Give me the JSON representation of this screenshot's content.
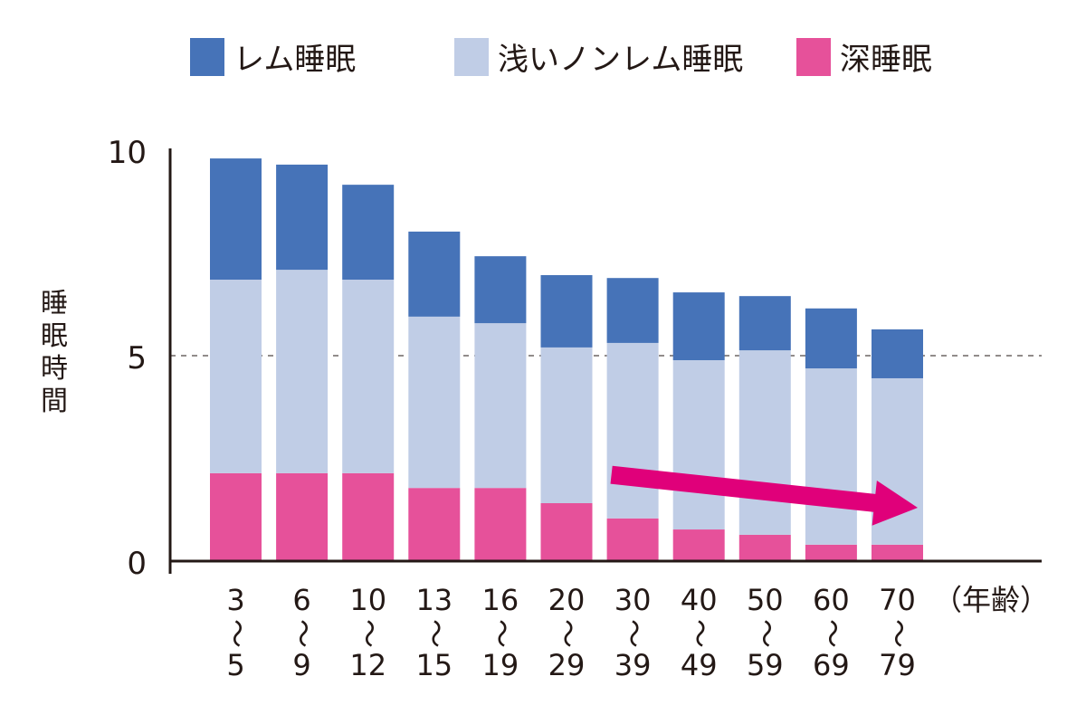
{
  "chart_data": {
    "type": "bar",
    "stacked": true,
    "title": "",
    "xlabel": "（年齢）",
    "ylabel": "睡眠時間",
    "ylim": [
      0,
      10
    ],
    "yticks": [
      0,
      5,
      10
    ],
    "grid": "dashed line at 5",
    "legend_position": "top",
    "categories": [
      {
        "from": "3",
        "to": "5"
      },
      {
        "from": "6",
        "to": "9"
      },
      {
        "from": "10",
        "to": "12"
      },
      {
        "from": "13",
        "to": "15"
      },
      {
        "from": "16",
        "to": "19"
      },
      {
        "from": "20",
        "to": "29"
      },
      {
        "from": "30",
        "to": "39"
      },
      {
        "from": "40",
        "to": "49"
      },
      {
        "from": "50",
        "to": "59"
      },
      {
        "from": "60",
        "to": "69"
      },
      {
        "from": "70",
        "to": "79"
      }
    ],
    "range_separator": "～",
    "series": [
      {
        "name": "深睡眠",
        "color": "#e6519a",
        "values": [
          2.14,
          2.14,
          2.14,
          1.78,
          1.78,
          1.41,
          1.04,
          0.77,
          0.64,
          0.4,
          0.4
        ]
      },
      {
        "name": "浅いノンレム睡眠",
        "color": "#c0cde6",
        "values": [
          4.71,
          4.95,
          4.71,
          4.17,
          4.01,
          3.79,
          4.27,
          4.12,
          4.49,
          4.29,
          4.05
        ]
      },
      {
        "name": "レム睡眠",
        "color": "#4673b8",
        "values": [
          2.95,
          2.56,
          2.31,
          2.07,
          1.63,
          1.76,
          1.58,
          1.65,
          1.32,
          1.46,
          1.19
        ]
      }
    ],
    "legend_order": [
      "レム睡眠",
      "浅いノンレム睡眠",
      "深睡眠"
    ],
    "annotations": [
      {
        "type": "arrow",
        "meaning": "deep sleep decreasing with age",
        "color": "#e0007a",
        "from_category": "30～39",
        "to_category": "70～79",
        "from_value": 2.1,
        "to_value": 1.3
      }
    ]
  }
}
